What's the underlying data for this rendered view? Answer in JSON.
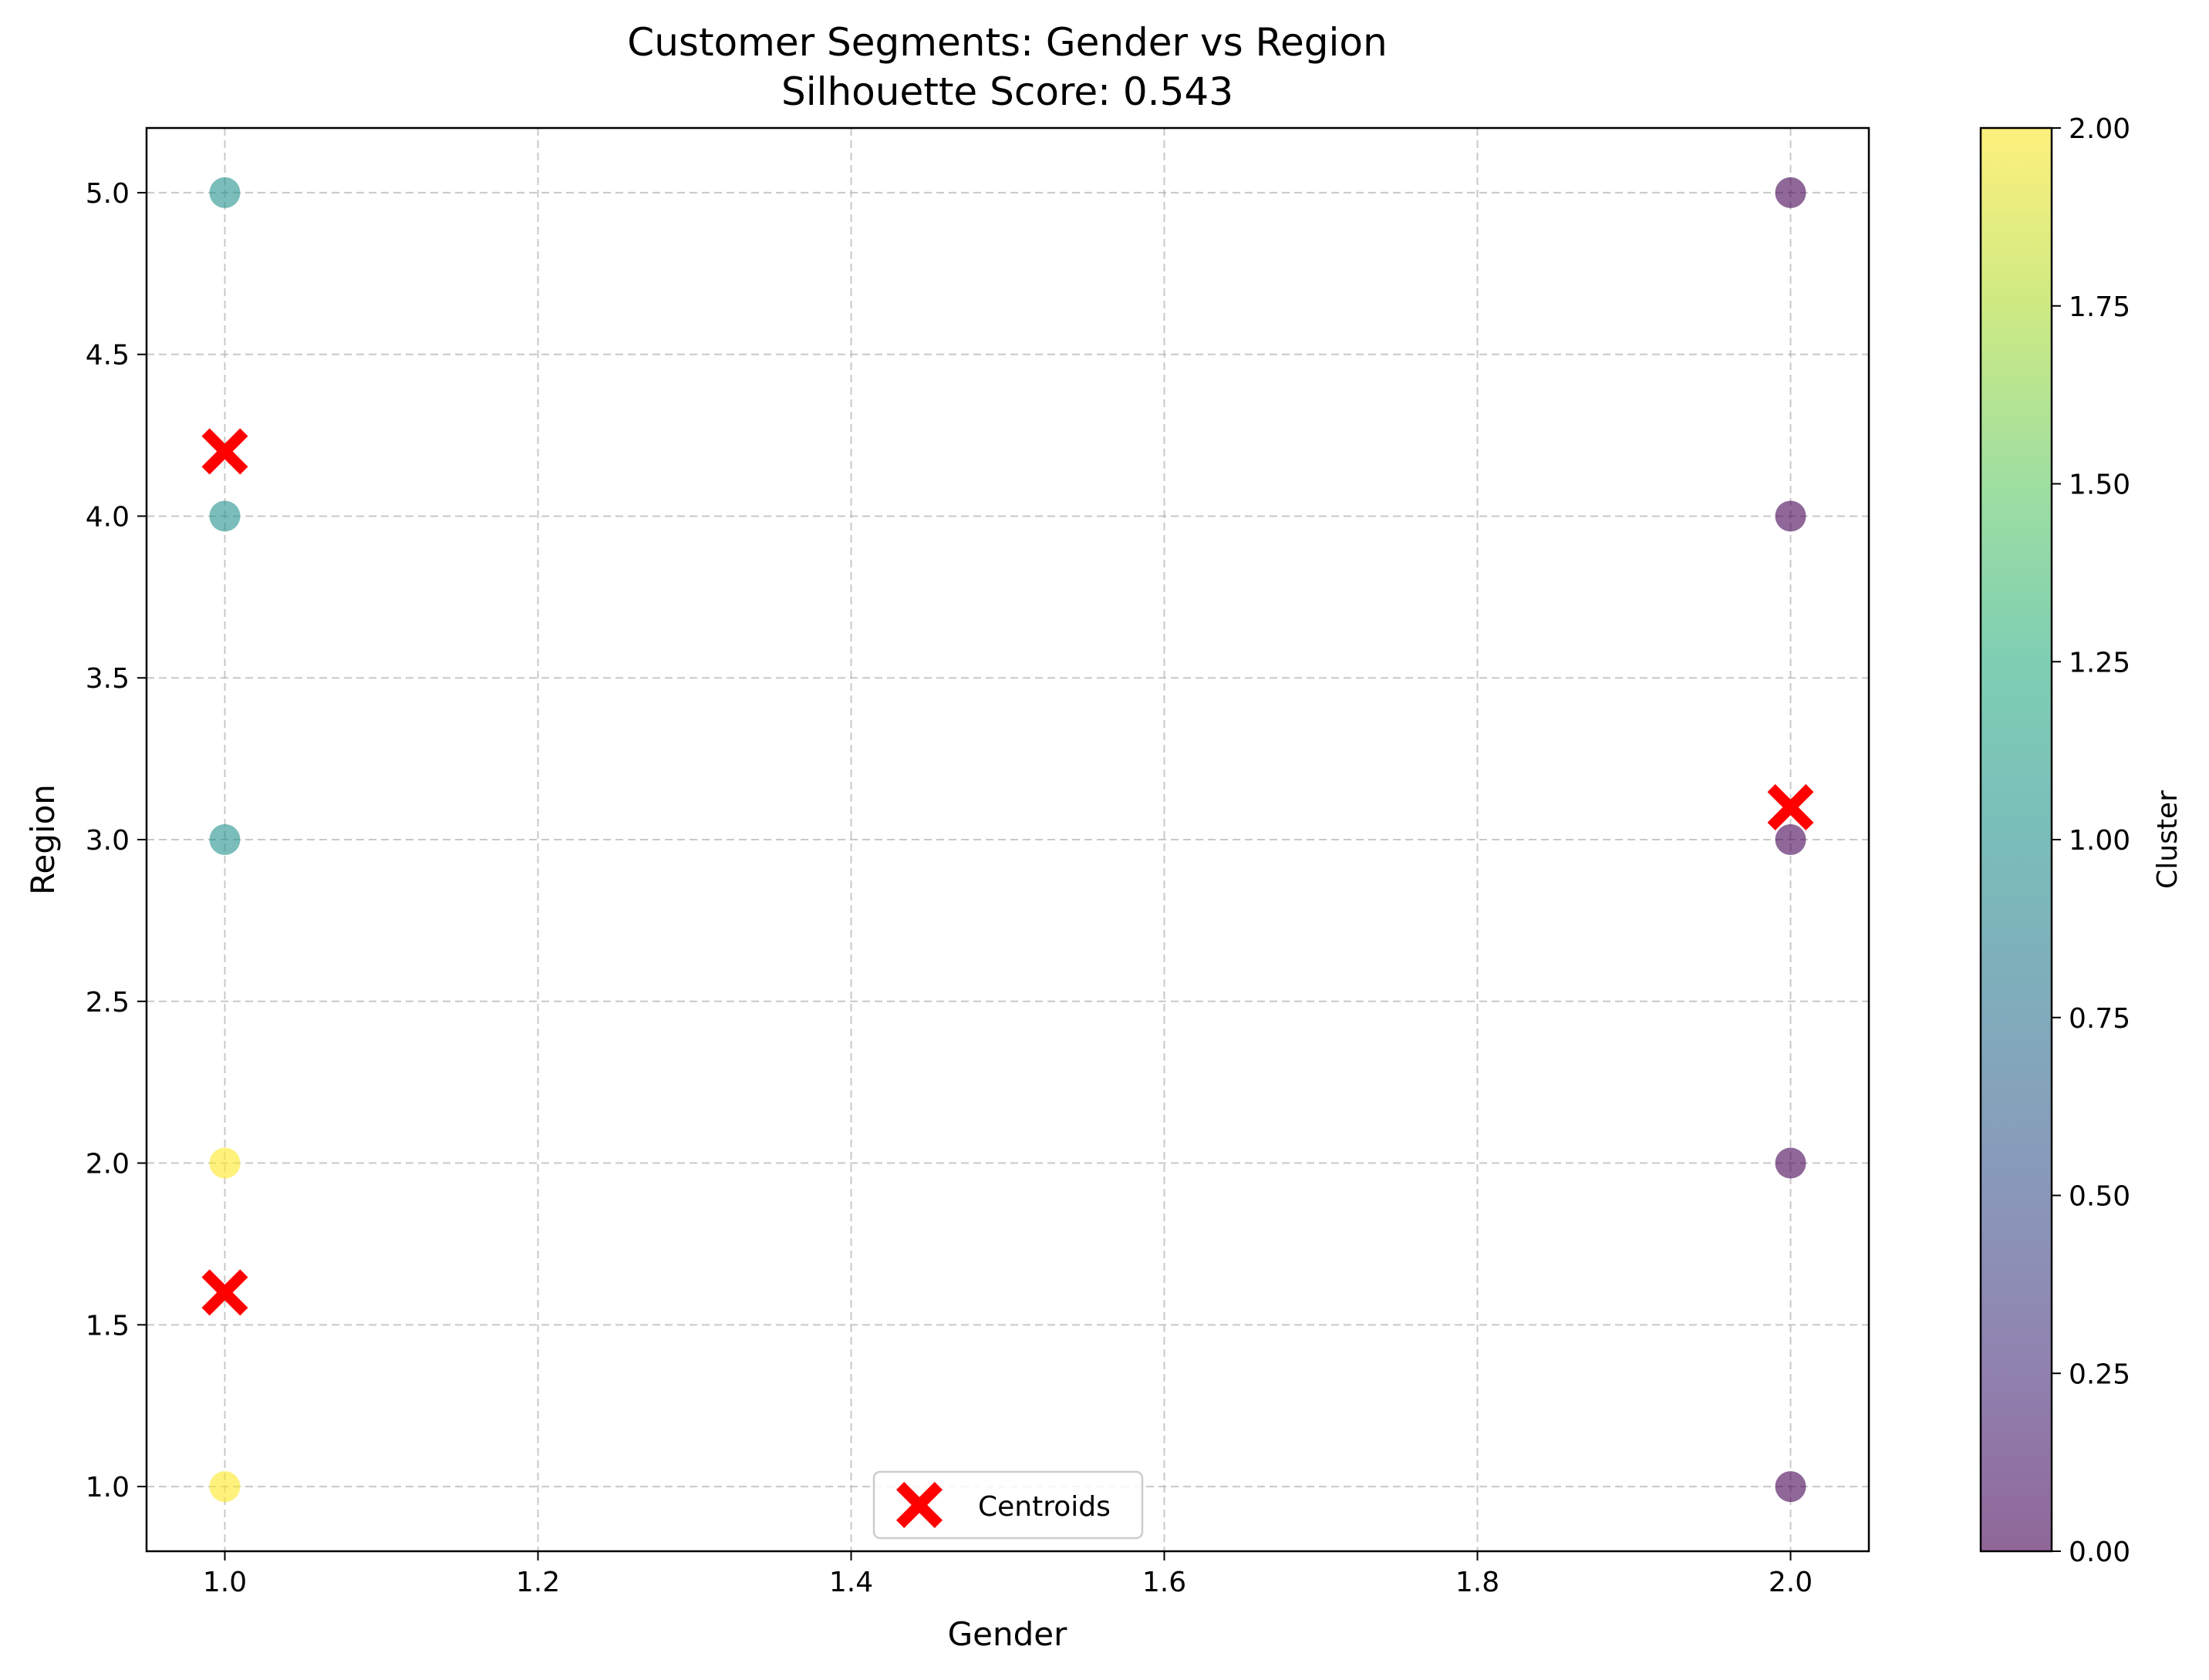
{
  "chart_data": {
    "type": "scatter",
    "title": "Customer Segments: Gender vs Region",
    "subtitle": "Silhouette Score: 0.543",
    "xlabel": "Gender",
    "ylabel": "Region",
    "xlim": [
      0.95,
      2.05
    ],
    "ylim": [
      0.8,
      5.2
    ],
    "xticks": [
      "1.0",
      "1.2",
      "1.4",
      "1.6",
      "1.8",
      "2.0"
    ],
    "yticks": [
      "1.0",
      "1.5",
      "2.0",
      "2.5",
      "3.0",
      "3.5",
      "4.0",
      "4.5",
      "5.0"
    ],
    "grid": true,
    "points": [
      {
        "x": 1.0,
        "y": 5.0,
        "cluster": 1
      },
      {
        "x": 1.0,
        "y": 4.0,
        "cluster": 1
      },
      {
        "x": 1.0,
        "y": 3.0,
        "cluster": 1
      },
      {
        "x": 1.0,
        "y": 2.0,
        "cluster": 2
      },
      {
        "x": 1.0,
        "y": 1.0,
        "cluster": 2
      },
      {
        "x": 2.0,
        "y": 5.0,
        "cluster": 0
      },
      {
        "x": 2.0,
        "y": 4.0,
        "cluster": 0
      },
      {
        "x": 2.0,
        "y": 3.0,
        "cluster": 0
      },
      {
        "x": 2.0,
        "y": 2.0,
        "cluster": 0
      },
      {
        "x": 2.0,
        "y": 1.0,
        "cluster": 0
      }
    ],
    "cluster_colors": {
      "0": "#440154",
      "1": "#21918c",
      "2": "#fde725"
    },
    "centroid_color": "#ff0000",
    "centroids": [
      {
        "x": 1.0,
        "y": 4.2
      },
      {
        "x": 1.0,
        "y": 1.6
      },
      {
        "x": 2.0,
        "y": 3.1
      }
    ],
    "legend": {
      "label": "Centroids",
      "position": "lower center"
    },
    "colorbar": {
      "label": "Cluster",
      "range": [
        0,
        2
      ],
      "ticks": [
        "0.00",
        "0.25",
        "0.50",
        "0.75",
        "1.00",
        "1.25",
        "1.50",
        "1.75",
        "2.00"
      ],
      "colormap": "viridis"
    }
  }
}
